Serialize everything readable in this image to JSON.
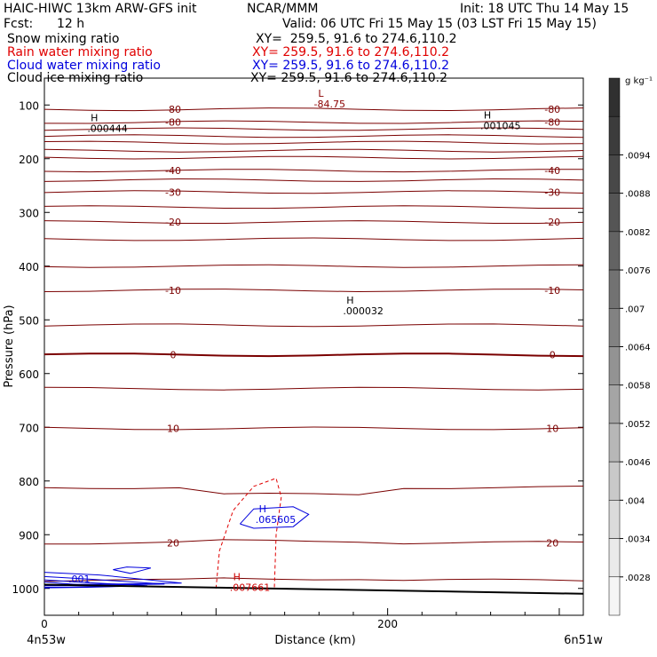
{
  "header": {
    "title_left": "HAIC-HIWC 13km ARW-GFS init",
    "title_center": "NCAR/MMM",
    "init": "Init: 18 UTC Thu 14 May 15",
    "fcst_label": "Fcst:",
    "fcst_value": "12 h",
    "valid": "Valid: 06 UTC Fri 15 May 15 (03 LST Fri 15 May 15)"
  },
  "legend": [
    {
      "name": "Snow mixing ratio",
      "xy": "XY=  259.5, 91.6 to 274.6,110.2",
      "color": "#000000"
    },
    {
      "name": "Rain water mixing ratio",
      "xy": "XY= 259.5, 91.6 to 274.6,110.2",
      "color": "#e00000"
    },
    {
      "name": "Cloud water mixing ratio",
      "xy": "XY= 259.5, 91.6 to 274.6,110.2",
      "color": "#0000dd"
    },
    {
      "name": "Cloud ice mixing ratio",
      "xy": "XY= 259.5, 91.6 to 274.6,110.2",
      "color": "#000000"
    }
  ],
  "chart_data": {
    "type": "line",
    "title": "Cross section",
    "ylabel": "Pressure (hPa)",
    "xlabel": "Distance (km)",
    "y_ticks": [
      100,
      200,
      300,
      400,
      500,
      600,
      700,
      800,
      900,
      1000
    ],
    "x_ticks": [
      0,
      200
    ],
    "ylim": [
      1050,
      50
    ],
    "xlim": [
      0,
      314
    ],
    "x_left_label": "4n53w",
    "x_right_label": "6n51w",
    "colorbar": {
      "unit": "g kg⁻¹",
      "labels": [
        ".0094",
        ".0088",
        ".0082",
        ".0076",
        ".007",
        ".0064",
        ".0058",
        ".0052",
        ".0046",
        ".004",
        ".0034",
        ".0028"
      ],
      "grays": [
        "#303030",
        "#3c3c3c",
        "#484848",
        "#555555",
        "#636363",
        "#727272",
        "#828282",
        "#939393",
        "#a5a5a5",
        "#b7b7b7",
        "#c9c9c9",
        "#dbdbdb",
        "#eaeaea",
        "#f5f5f5"
      ]
    },
    "temperature_contours": [
      {
        "label": "-80",
        "p": 108
      },
      {
        "label": "-80",
        "p": 132
      },
      {
        "label": "",
        "p": 145
      },
      {
        "label": "",
        "p": 158
      },
      {
        "label": "",
        "p": 170
      },
      {
        "label": "",
        "p": 185
      },
      {
        "label": "",
        "p": 198
      },
      {
        "label": "-40",
        "p": 222
      },
      {
        "label": "",
        "p": 240
      },
      {
        "label": "-30",
        "p": 262
      },
      {
        "label": "",
        "p": 290
      },
      {
        "label": "-20",
        "p": 318
      },
      {
        "label": "",
        "p": 350
      },
      {
        "label": "",
        "p": 400
      },
      {
        "label": "-10",
        "p": 445
      },
      {
        "label": "",
        "p": 510
      },
      {
        "label": "0",
        "p": 565
      },
      {
        "label": "",
        "p": 628
      },
      {
        "label": "10",
        "p": 702
      },
      {
        "label": "",
        "p": 812
      },
      {
        "label": "20",
        "p": 915
      },
      {
        "label": "",
        "p": 985
      }
    ],
    "temperature_labels": [
      "-84.75",
      "-80",
      "-80",
      "-40",
      "-40",
      "-30",
      "-30",
      "-20",
      "-20",
      "-10",
      "-10",
      "0",
      "0",
      "10",
      "10",
      "20",
      "20"
    ],
    "annotations": [
      {
        "mark": "L",
        "text": "-84.75",
        "color": "#8b0000",
        "x": 157,
        "p": 95
      },
      {
        "mark": "H",
        "text": ".000444",
        "color": "#000000",
        "x": 25,
        "p": 140
      },
      {
        "mark": "H",
        "text": ".001045",
        "color": "#000000",
        "x": 254,
        "p": 135
      },
      {
        "mark": "H",
        "text": ".000032",
        "color": "#000000",
        "x": 174,
        "p": 480
      },
      {
        "mark": "H",
        "text": ".065605",
        "color": "#0000dd",
        "x": 123,
        "p": 868
      },
      {
        "mark": "H",
        "text": ".007661",
        "color": "#cc0000",
        "x": 108,
        "p": 995
      },
      {
        "mark": "",
        "text": ".001",
        "color": "#0000dd",
        "x": 14,
        "p": 979
      }
    ],
    "surface": {
      "p_start": 993,
      "p_end": 1010
    }
  }
}
